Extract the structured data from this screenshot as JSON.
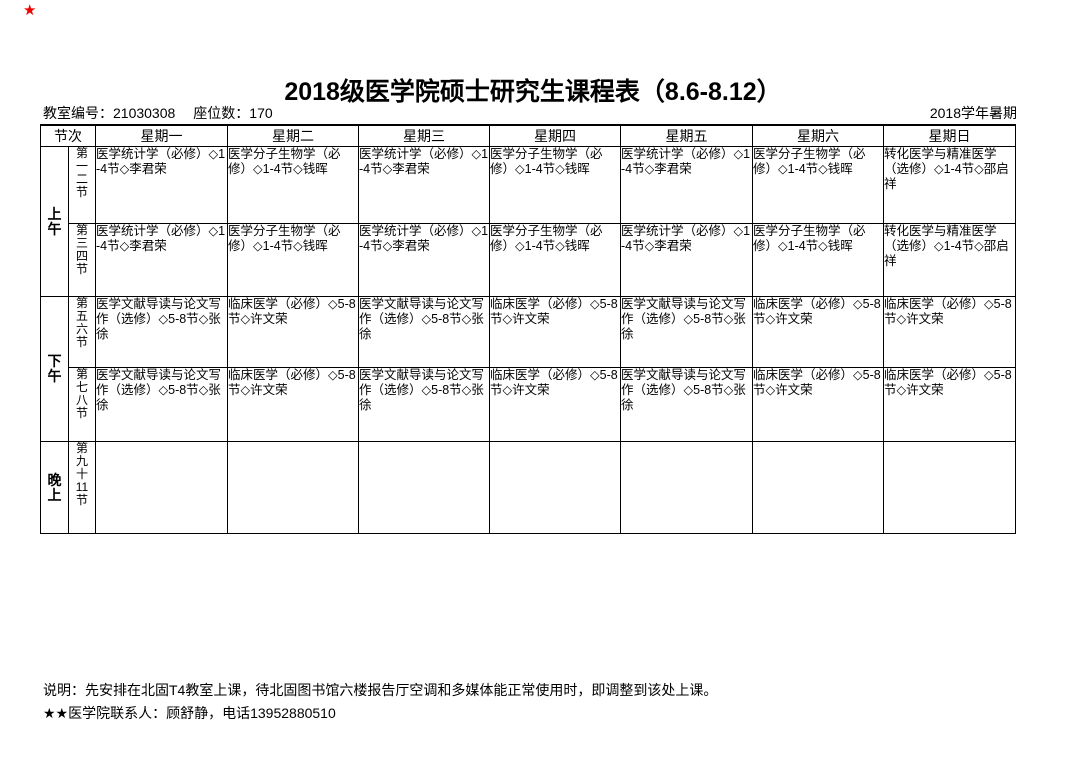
{
  "decoration": {
    "corner_star": "★"
  },
  "title": "2018级医学院硕士研究生课程表（8.6-8.12）",
  "info_bar": {
    "room_number_label": "教室编号：21030308",
    "seat_count_label": "座位数：170",
    "term_label": "2018学年暑期"
  },
  "table": {
    "corner_header": "节次",
    "day_headers": [
      "星期一",
      "星期二",
      "星期三",
      "星期四",
      "星期五",
      "星期六",
      "星期日"
    ],
    "period_groups": [
      {
        "label": "上午",
        "span": 2
      },
      {
        "label": "下午",
        "span": 2
      },
      {
        "label": "晚上",
        "span": 1
      }
    ],
    "rows": [
      {
        "period": "第一二节",
        "cells": [
          "医学统计学（必修）◇1-4节◇李君荣",
          "医学分子生物学（必修）◇1-4节◇钱晖",
          "医学统计学（必修）◇1-4节◇李君荣",
          "医学分子生物学（必修）◇1-4节◇钱晖",
          "医学统计学（必修）◇1-4节◇李君荣",
          "医学分子生物学（必修）◇1-4节◇钱晖",
          "转化医学与精准医学（选修）◇1-4节◇邵启祥"
        ]
      },
      {
        "period": "第三四节",
        "cells": [
          "医学统计学（必修）◇1-4节◇李君荣",
          "医学分子生物学（必修）◇1-4节◇钱晖",
          "医学统计学（必修）◇1-4节◇李君荣",
          "医学分子生物学（必修）◇1-4节◇钱晖",
          "医学统计学（必修）◇1-4节◇李君荣",
          "医学分子生物学（必修）◇1-4节◇钱晖",
          "转化医学与精准医学（选修）◇1-4节◇邵启祥"
        ]
      },
      {
        "period": "第五六节",
        "cells": [
          "医学文献导读与论文写作（选修）◇5-8节◇张徐",
          "临床医学（必修）◇5-8节◇许文荣",
          "医学文献导读与论文写作（选修）◇5-8节◇张徐",
          "临床医学（必修）◇5-8节◇许文荣",
          "医学文献导读与论文写作（选修）◇5-8节◇张徐",
          "临床医学（必修）◇5-8节◇许文荣",
          "临床医学（必修）◇5-8节◇许文荣"
        ]
      },
      {
        "period": "第七八节",
        "cells": [
          "医学文献导读与论文写作（选修）◇5-8节◇张徐",
          "临床医学（必修）◇5-8节◇许文荣",
          "医学文献导读与论文写作（选修）◇5-8节◇张徐",
          "临床医学（必修）◇5-8节◇许文荣",
          "医学文献导读与论文写作（选修）◇5-8节◇张徐",
          "临床医学（必修）◇5-8节◇许文荣",
          "临床医学（必修）◇5-8节◇许文荣"
        ]
      },
      {
        "period": "第九十11节",
        "cells": [
          "",
          "",
          "",
          "",
          "",
          "",
          ""
        ]
      }
    ]
  },
  "notes": {
    "line1": "说明：先安排在北固T4教室上课，待北固图书馆六楼报告厅空调和多媒体能正常使用时，即调整到该处上课。",
    "line2": "★★医学院联系人：顾舒静，电话13952880510"
  },
  "colors": {
    "background": "#ffffff",
    "text": "#000000",
    "border": "#000000",
    "corner_star": "#ee0000"
  }
}
